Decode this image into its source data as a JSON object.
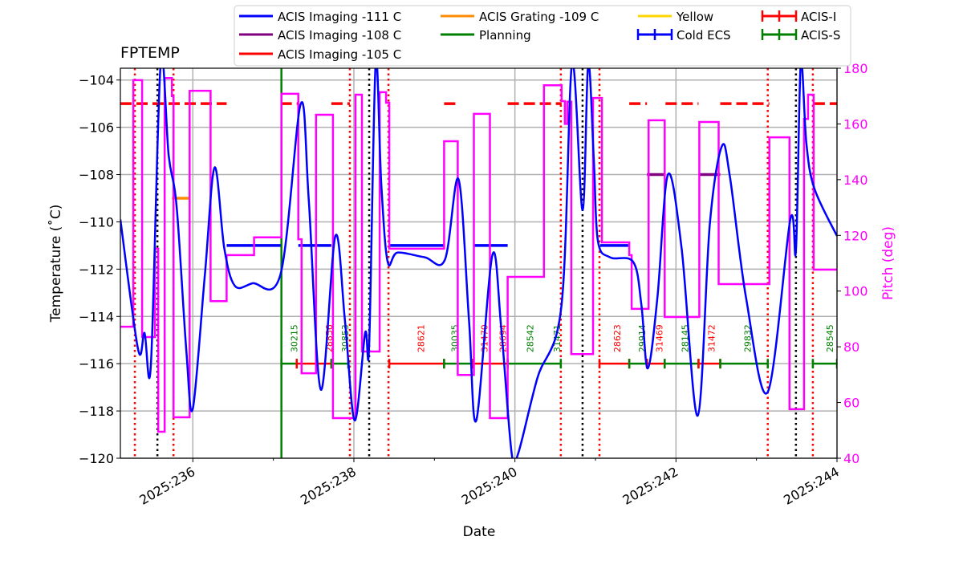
{
  "chart_data": {
    "type": "line",
    "title": "FPTEMP",
    "xlabel": "Date",
    "ylabel": "Temperature ($^\\circ$C)",
    "ylabel_display": "Temperature (˚C)",
    "y2label": "Pitch (deg)",
    "xlim": [
      235.1,
      244.0
    ],
    "ylim": [
      -120,
      -103.5
    ],
    "y2lim": [
      40,
      180
    ],
    "xticks": [
      {
        "v": 236,
        "label": "2025:236"
      },
      {
        "v": 238,
        "label": "2025:238"
      },
      {
        "v": 240,
        "label": "2025:240"
      },
      {
        "v": 242,
        "label": "2025:242"
      },
      {
        "v": 244,
        "label": "2025:244"
      }
    ],
    "yticks": [
      -104,
      -106,
      -108,
      -110,
      -112,
      -114,
      -116,
      -118,
      -120
    ],
    "y2ticks": [
      40,
      60,
      80,
      100,
      120,
      140,
      160,
      180
    ],
    "grid": true,
    "legend_placement": "top",
    "colors": {
      "temp": "#0000ff",
      "pitch": "#ff00ff",
      "limit111": "#0000ff",
      "limit108": "#800080",
      "limit105": "#ff0000",
      "grating109": "#ff8c00",
      "planning": "#008000",
      "yellow": "#ffd700",
      "acis_i": "#ff0000",
      "acis_s": "#008000"
    },
    "legend": [
      {
        "label": "ACIS Imaging -111 C",
        "color": "#0000ff",
        "style": "line"
      },
      {
        "label": "ACIS Imaging -108 C",
        "color": "#800080",
        "style": "line"
      },
      {
        "label": "ACIS Imaging -105 C",
        "color": "#ff0000",
        "style": "line"
      },
      {
        "label": "ACIS Grating -109 C",
        "color": "#ff8c00",
        "style": "line"
      },
      {
        "label": "Planning",
        "color": "#008000",
        "style": "line"
      },
      {
        "label": "Yellow",
        "color": "#ffd700",
        "style": "line"
      },
      {
        "label": "Cold ECS",
        "color": "#0000ff",
        "style": "errorbar"
      },
      {
        "label": "ACIS-I",
        "color": "#ff0000",
        "style": "errorbar"
      },
      {
        "label": "ACIS-S",
        "color": "#008000",
        "style": "errorbar"
      }
    ],
    "temperature": [
      [
        235.1,
        -109.9
      ],
      [
        235.32,
        -115.4
      ],
      [
        235.4,
        -114.7
      ],
      [
        235.48,
        -116.0
      ],
      [
        235.6,
        -103.3
      ],
      [
        235.7,
        -107.2
      ],
      [
        235.8,
        -109.4
      ],
      [
        235.92,
        -115.5
      ],
      [
        236.0,
        -117.9
      ],
      [
        236.15,
        -112.2
      ],
      [
        236.27,
        -107.7
      ],
      [
        236.39,
        -111.1
      ],
      [
        236.52,
        -112.7
      ],
      [
        236.74,
        -112.6
      ],
      [
        237.09,
        -112.2
      ],
      [
        237.34,
        -105.0
      ],
      [
        237.44,
        -109.1
      ],
      [
        237.59,
        -117.1
      ],
      [
        237.77,
        -110.6
      ],
      [
        237.89,
        -114.2
      ],
      [
        238.01,
        -118.4
      ],
      [
        238.14,
        -114.7
      ],
      [
        238.19,
        -115.2
      ],
      [
        238.27,
        -103.3
      ],
      [
        238.34,
        -108.4
      ],
      [
        238.42,
        -111.7
      ],
      [
        238.54,
        -111.3
      ],
      [
        238.88,
        -111.5
      ],
      [
        239.13,
        -111.6
      ],
      [
        239.3,
        -108.2
      ],
      [
        239.43,
        -114.2
      ],
      [
        239.52,
        -118.4
      ],
      [
        239.72,
        -111.4
      ],
      [
        239.83,
        -114.5
      ],
      [
        239.96,
        -119.8
      ],
      [
        240.04,
        -119.8
      ],
      [
        240.28,
        -116.6
      ],
      [
        240.58,
        -113.5
      ],
      [
        240.71,
        -103.3
      ],
      [
        240.84,
        -109.5
      ],
      [
        240.91,
        -103.3
      ],
      [
        240.98,
        -107.4
      ],
      [
        241.03,
        -110.8
      ],
      [
        241.18,
        -111.5
      ],
      [
        241.47,
        -111.7
      ],
      [
        241.57,
        -113.5
      ],
      [
        241.65,
        -116.2
      ],
      [
        241.77,
        -113.2
      ],
      [
        241.9,
        -108.0
      ],
      [
        242.07,
        -111.1
      ],
      [
        242.27,
        -118.2
      ],
      [
        242.42,
        -110.1
      ],
      [
        242.57,
        -106.8
      ],
      [
        242.67,
        -108.1
      ],
      [
        242.87,
        -113.2
      ],
      [
        243.14,
        -117.2
      ],
      [
        243.42,
        -109.9
      ],
      [
        243.49,
        -111.2
      ],
      [
        243.55,
        -103.3
      ],
      [
        243.62,
        -106.7
      ],
      [
        243.72,
        -108.6
      ],
      [
        244.0,
        -110.6
      ]
    ],
    "pitch": [
      [
        235.1,
        87.2
      ],
      [
        235.26,
        175.7
      ],
      [
        235.37,
        83.5
      ],
      [
        235.53,
        115.2
      ],
      [
        235.57,
        49.5
      ],
      [
        235.65,
        176.5
      ],
      [
        235.74,
        170.0
      ],
      [
        235.76,
        54.7
      ],
      [
        235.96,
        171.9
      ],
      [
        236.22,
        96.4
      ],
      [
        236.42,
        112.9
      ],
      [
        236.76,
        119.3
      ],
      [
        237.1,
        170.8
      ],
      [
        237.31,
        118.6
      ],
      [
        237.35,
        70.5
      ],
      [
        237.53,
        163.3
      ],
      [
        237.74,
        54.4
      ],
      [
        238.02,
        170.5
      ],
      [
        238.1,
        78.3
      ],
      [
        238.32,
        171.4
      ],
      [
        238.4,
        167.6
      ],
      [
        238.44,
        115.2
      ],
      [
        239.12,
        153.8
      ],
      [
        239.29,
        69.9
      ],
      [
        239.49,
        163.6
      ],
      [
        239.69,
        54.4
      ],
      [
        239.91,
        105.1
      ],
      [
        240.36,
        173.9
      ],
      [
        240.58,
        168.2
      ],
      [
        240.62,
        160.0
      ],
      [
        240.65,
        168.0
      ],
      [
        240.7,
        77.4
      ],
      [
        240.97,
        169.3
      ],
      [
        241.08,
        117.5
      ],
      [
        241.42,
        112.9
      ],
      [
        241.45,
        93.6
      ],
      [
        241.66,
        161.3
      ],
      [
        241.86,
        90.7
      ],
      [
        242.29,
        160.7
      ],
      [
        242.53,
        102.5
      ],
      [
        243.16,
        155.2
      ],
      [
        243.41,
        57.6
      ],
      [
        243.59,
        161.8
      ],
      [
        243.64,
        170.5
      ],
      [
        243.71,
        107.7
      ],
      [
        244.0,
        107.7
      ]
    ],
    "limit_segments": [
      {
        "limit": -105,
        "color": "#ff0000",
        "spans": [
          [
            235.1,
            236.42
          ],
          [
            237.09,
            237.31
          ],
          [
            237.72,
            237.95
          ],
          [
            239.12,
            239.29
          ],
          [
            239.91,
            240.58
          ],
          [
            241.42,
            241.64
          ],
          [
            241.87,
            242.28
          ],
          [
            242.55,
            243.16
          ],
          [
            243.71,
            244.0
          ]
        ]
      },
      {
        "limit": -111,
        "color": "#0000ff",
        "spans": [
          [
            236.42,
            237.09
          ],
          [
            237.31,
            237.72
          ],
          [
            238.44,
            239.12
          ],
          [
            239.48,
            239.91
          ],
          [
            241.06,
            241.42
          ]
        ]
      },
      {
        "limit": -108,
        "color": "#800080",
        "spans": [
          [
            241.64,
            241.86
          ],
          [
            242.28,
            242.55
          ]
        ]
      },
      {
        "limit": -109,
        "color": "#ff8c00",
        "spans": [
          [
            235.74,
            235.96
          ]
        ]
      }
    ],
    "planning_start": 237.1,
    "red_dotted": [
      235.28,
      235.76,
      237.95,
      238.43,
      240.57,
      241.05,
      243.14,
      243.7
    ],
    "black_dotted": [
      235.56,
      238.19,
      240.84,
      243.49
    ],
    "obs_bar_level": -116,
    "obs_segments": [
      [
        237.1,
        237.29,
        "S"
      ],
      [
        237.29,
        237.72,
        "I"
      ],
      [
        237.72,
        237.93,
        "S"
      ],
      [
        238.44,
        239.12,
        "I"
      ],
      [
        239.12,
        239.48,
        "S"
      ],
      [
        239.48,
        239.91,
        "I"
      ],
      [
        239.91,
        240.57,
        "S"
      ],
      [
        241.05,
        241.42,
        "I"
      ],
      [
        241.42,
        241.64,
        "S"
      ],
      [
        241.64,
        241.86,
        "I"
      ],
      [
        241.86,
        242.28,
        "S"
      ],
      [
        242.28,
        242.55,
        "I"
      ],
      [
        242.55,
        243.14,
        "S"
      ],
      [
        243.7,
        244.0,
        "S"
      ]
    ],
    "obsids": [
      {
        "x": 237.26,
        "id": "30215",
        "inst": "S"
      },
      {
        "x": 237.69,
        "id": "28856",
        "inst": "I"
      },
      {
        "x": 237.89,
        "id": "30853",
        "inst": "S"
      },
      {
        "x": 238.83,
        "id": "28621",
        "inst": "I"
      },
      {
        "x": 239.25,
        "id": "30035",
        "inst": "S"
      },
      {
        "x": 239.62,
        "id": "31470",
        "inst": "I"
      },
      {
        "x": 239.85,
        "id": "28694",
        "inst": "I"
      },
      {
        "x": 240.19,
        "id": "28542",
        "inst": "S"
      },
      {
        "x": 240.52,
        "id": "31471",
        "inst": "S"
      },
      {
        "x": 241.27,
        "id": "28623",
        "inst": "I"
      },
      {
        "x": 241.58,
        "id": "29914",
        "inst": "S"
      },
      {
        "x": 241.79,
        "id": "31469",
        "inst": "I"
      },
      {
        "x": 242.11,
        "id": "28145",
        "inst": "S"
      },
      {
        "x": 242.44,
        "id": "31472",
        "inst": "I"
      },
      {
        "x": 242.89,
        "id": "29832",
        "inst": "S"
      },
      {
        "x": 243.91,
        "id": "28545",
        "inst": "S"
      }
    ]
  }
}
